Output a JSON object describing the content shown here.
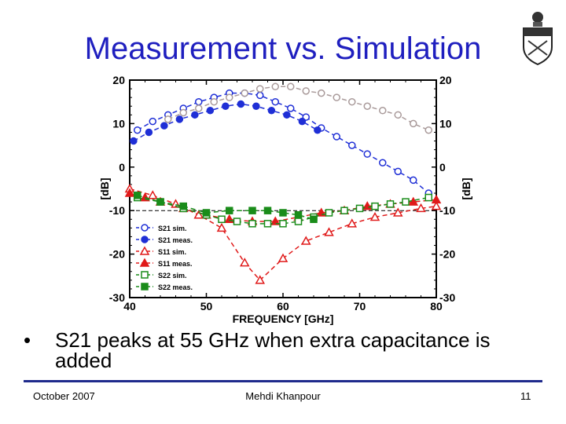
{
  "slide": {
    "title": "Measurement vs. Simulation",
    "bullet": "S21 peaks at 55 GHz when extra capacitance is added",
    "footer_left": "October 2007",
    "footer_center": "Mehdi Khanpour",
    "footer_right": "11"
  },
  "icons": {
    "logo": "university-crest-icon",
    "bullet": "bullet-dot-icon"
  },
  "colors": {
    "title": "#1f1fbf",
    "s21": "#1f2fd6",
    "s21_alt": "#a99a9a",
    "s11": "#e01a1a",
    "s22": "#1a8c1a",
    "rule": "#1f2a8c"
  },
  "chart_data": {
    "type": "line",
    "xlabel": "FREQUENCY [GHz]",
    "ylabel": "[dB]",
    "ylabel_right": "[dB]",
    "xlim": [
      40,
      80
    ],
    "ylim": [
      -30,
      20
    ],
    "xticks": [
      "40",
      "50",
      "60",
      "70",
      "80"
    ],
    "yticks": [
      "-30",
      "-20",
      "-10",
      "0",
      "10",
      "20"
    ],
    "reference_line": -10,
    "legend_position": "bottom-left",
    "series": [
      {
        "name": "S21 sim.",
        "color": "#1f2fd6",
        "dash": true,
        "marker": "circle-open",
        "x": [
          41,
          43,
          45,
          47,
          49,
          51,
          53,
          55,
          57,
          59,
          61,
          63,
          65,
          67,
          69,
          71,
          73,
          75,
          77,
          79
        ],
        "y": [
          8.5,
          10.5,
          12,
          13.5,
          15,
          16,
          17,
          17,
          16.5,
          15,
          13.5,
          11.5,
          9,
          7,
          5,
          3,
          1,
          -1,
          -3,
          -6
        ]
      },
      {
        "name": "",
        "color": "#a99a9a",
        "dash": true,
        "marker": "circle-open",
        "x": [
          45,
          47,
          49,
          51,
          53,
          55,
          57,
          59,
          61,
          63,
          65,
          67,
          69,
          71,
          73,
          75,
          77,
          79
        ],
        "y": [
          11,
          12.5,
          13.5,
          15,
          16,
          17,
          18,
          18.5,
          18.5,
          17.5,
          17,
          16,
          15,
          14,
          13,
          12,
          10,
          8.5
        ]
      },
      {
        "name": "S21 meas.",
        "color": "#1f2fd6",
        "dash": true,
        "marker": "circle-filled",
        "x": [
          40.5,
          42.5,
          44.5,
          46.5,
          48.5,
          50.5,
          52.5,
          54.5,
          56.5,
          58.5,
          60.5,
          62.5,
          64.5
        ],
        "y": [
          6,
          8,
          9.5,
          11,
          12,
          13,
          14,
          14.5,
          14,
          13,
          12,
          10.5,
          8.5
        ]
      },
      {
        "name": "S11 sim.",
        "color": "#e01a1a",
        "dash": true,
        "marker": "triangle-open",
        "x": [
          40,
          43,
          46,
          49,
          52,
          55,
          57,
          60,
          63,
          66,
          69,
          72,
          75,
          78,
          80
        ],
        "y": [
          -5,
          -6.5,
          -8.5,
          -11,
          -14,
          -22,
          -26,
          -21,
          -17,
          -15,
          -13,
          -11.5,
          -10.5,
          -9.5,
          -9
        ]
      },
      {
        "name": "S11 meas.",
        "color": "#e01a1a",
        "dash": true,
        "marker": "triangle-filled",
        "x": [
          40,
          42,
          44,
          47,
          50,
          53,
          56,
          59,
          62,
          65,
          68,
          71,
          74,
          77,
          80
        ],
        "y": [
          -6,
          -7,
          -8,
          -9.5,
          -11,
          -12,
          -12.5,
          -12.5,
          -11.5,
          -10.5,
          -10,
          -9,
          -8.5,
          -8,
          -7.5
        ]
      },
      {
        "name": "S22 sim.",
        "color": "#1a8c1a",
        "dash": true,
        "marker": "square-open",
        "x": [
          41,
          44,
          47,
          50,
          52,
          54,
          56,
          58,
          60,
          62,
          64,
          66,
          68,
          70,
          72,
          74,
          76,
          79
        ],
        "y": [
          -7,
          -8,
          -9.5,
          -11,
          -12,
          -12.5,
          -13,
          -13,
          -13,
          -12.5,
          -11.5,
          -10.5,
          -10,
          -9.5,
          -9,
          -8.5,
          -8,
          -7
        ]
      },
      {
        "name": "S22 meas.",
        "color": "#1a8c1a",
        "dash": true,
        "marker": "square-filled",
        "x": [
          41,
          44,
          47,
          50,
          53,
          56,
          58,
          60,
          62,
          64
        ],
        "y": [
          -6.5,
          -8,
          -9,
          -10.5,
          -10,
          -10,
          -10,
          -10.5,
          -11,
          -12
        ]
      }
    ]
  }
}
